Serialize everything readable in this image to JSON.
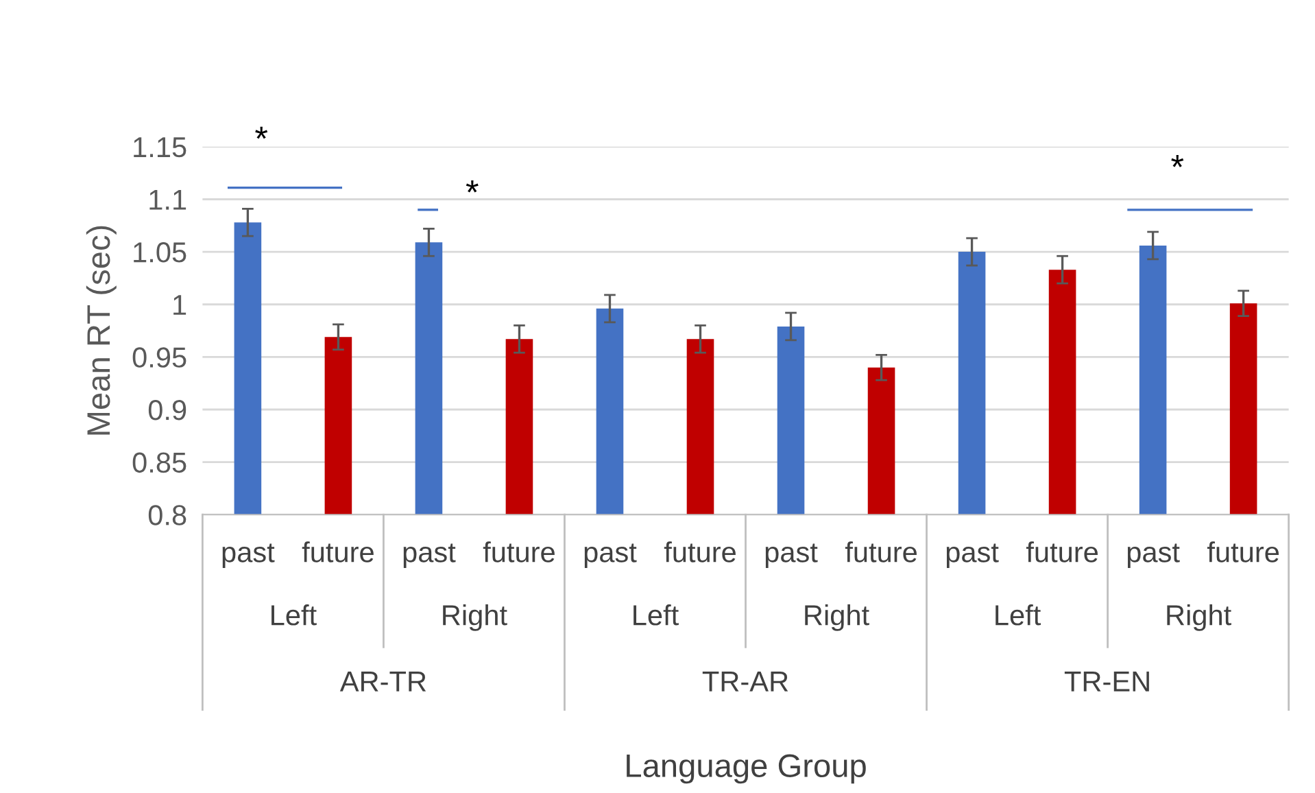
{
  "chart_data": {
    "type": "bar",
    "ylabel": "Mean RT (sec)",
    "categories": [
      "past",
      "future",
      "past",
      "future",
      "past",
      "future",
      "past",
      "future",
      "past",
      "future",
      "past",
      "future"
    ],
    "values": [
      1.078,
      0.969,
      1.059,
      0.967,
      0.996,
      0.967,
      0.979,
      0.94,
      1.05,
      1.033,
      1.056,
      1.001
    ],
    "errors": [
      0.013,
      0.012,
      0.013,
      0.013,
      0.013,
      0.013,
      0.013,
      0.012,
      0.013,
      0.013,
      0.013,
      0.012
    ],
    "colors": [
      "#4472c4",
      "#c00000",
      "#4472c4",
      "#c00000",
      "#4472c4",
      "#c00000",
      "#4472c4",
      "#c00000",
      "#4472c4",
      "#c00000",
      "#4472c4",
      "#c00000"
    ],
    "ylim": [
      0.8,
      1.15
    ],
    "yticks": [
      0.8,
      0.85,
      0.9,
      0.95,
      1,
      1.05,
      1.1,
      1.15
    ],
    "grid": "y",
    "annotations": [
      "Left",
      "Right",
      "Left",
      "Right",
      "Left",
      "Right",
      "AR-TR",
      "TR-AR",
      "TR-EN",
      "Language Group",
      "*",
      "*",
      "*"
    ]
  }
}
